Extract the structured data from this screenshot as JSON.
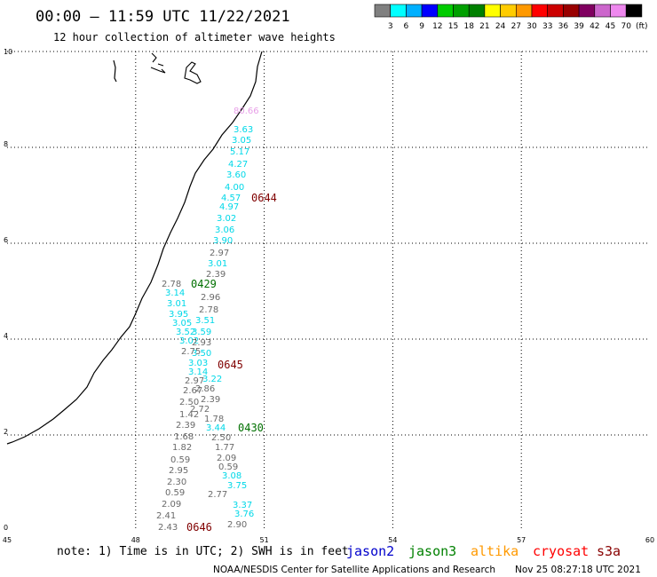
{
  "header": {
    "title": "00:00 – 11:59 UTC 11/22/2021",
    "subtitle": "12 hour collection of altimeter wave heights"
  },
  "legend": {
    "colors": [
      "#808080",
      "#00ffff",
      "#00b0ff",
      "#0000ff",
      "#00cc00",
      "#00a000",
      "#008000",
      "#ffff00",
      "#ffcc00",
      "#ff9900",
      "#ff0000",
      "#cc0000",
      "#990000",
      "#800060",
      "#cc66cc",
      "#ee88ee",
      "#000000"
    ],
    "labels": [
      "3",
      "6",
      "9",
      "12",
      "15",
      "18",
      "21",
      "24",
      "27",
      "30",
      "33",
      "36",
      "39",
      "42",
      "45",
      "70"
    ],
    "unit": "(ft)"
  },
  "map": {
    "lon_range": [
      45,
      60
    ],
    "lat_range": [
      0,
      10
    ],
    "x_ticks": [
      "45",
      "48",
      "51",
      "54",
      "57",
      "60"
    ],
    "y_ticks": [
      "0",
      "2",
      "4",
      "6",
      "8",
      "10"
    ],
    "grid": "dotted"
  },
  "passes": [
    {
      "label": "0644",
      "color": "#800000"
    },
    {
      "label": "0429",
      "color": "#007000"
    },
    {
      "label": "0645",
      "color": "#800000"
    },
    {
      "label": "0430",
      "color": "#007000"
    },
    {
      "label": "0646",
      "color": "#800000"
    }
  ],
  "chart_data": {
    "type": "scatter",
    "title": "12 hour collection of altimeter wave heights",
    "units": "ft",
    "points_cyan": [
      "3.63",
      "3.05",
      "5.17",
      "4.27",
      "3.60",
      "4.00",
      "4.57",
      "4.97",
      "3.02",
      "3.06",
      "3.90",
      "3.01",
      "3.14",
      "3.01",
      "3.95",
      "3.05",
      "3.51",
      "3.52",
      "3.59",
      "3.02",
      "3.50",
      "3.03",
      "3.14",
      "3.22",
      "3.44",
      "3.08",
      "3.75",
      "3.37",
      "3.76"
    ],
    "points_gray": [
      "2.97",
      "2.39",
      "2.78",
      "2.96",
      "2.78",
      "2.93",
      "2.75",
      "2.97",
      "2.67",
      "2.86",
      "2.50",
      "2.39",
      "2.72",
      "1.42",
      "1.78",
      "2.39",
      "1.68",
      "2.50",
      "1.82",
      "1.77",
      "0.59",
      "2.09",
      "2.95",
      "0.59",
      "2.30",
      "2.77",
      "0.59",
      "2.09",
      "2.41",
      "2.43",
      "2.90"
    ],
    "points_pink": [
      "80.66"
    ]
  },
  "footer": {
    "note": "note: 1) Time is in UTC; 2) SWH is in feet",
    "missions": [
      {
        "name": "jason2",
        "color": "#0000cc"
      },
      {
        "name": "jason3",
        "color": "#008000"
      },
      {
        "name": "altika",
        "color": "#ff9900"
      },
      {
        "name": "cryosat",
        "color": "#ff0000"
      },
      {
        "name": "s3a",
        "color": "#880000"
      }
    ],
    "credit": "NOAA/NESDIS Center for Satellite Applications and Research",
    "timestamp": "Nov 25 08:27:18 UTC 2021"
  }
}
